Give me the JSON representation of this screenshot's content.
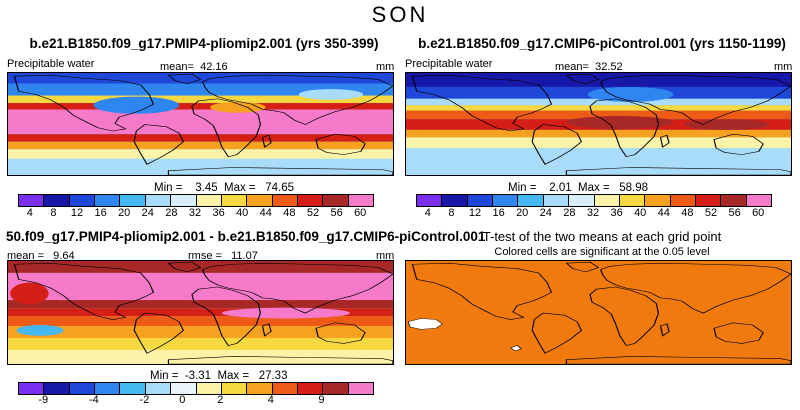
{
  "season": "SON",
  "panels": {
    "top_left": {
      "title": "b.e21.B1850.f09_g17.PMIP4-pliomip2.001 (yrs 350-399)",
      "variable": "Precipitable water",
      "mean_label": "mean=",
      "mean_value": "42.16",
      "units": "mm",
      "min_label": "Min =",
      "min_value": "3.45",
      "max_label": "Max =",
      "max_value": "74.65"
    },
    "top_right": {
      "title": "b.e21.B1850.f09_g17.CMIP6-piControl.001 (yrs 1150-1199)",
      "variable": "Precipitable water",
      "mean_label": "mean=",
      "mean_value": "32.52",
      "units": "mm",
      "min_label": "Min =",
      "min_value": "2.01",
      "max_label": "Max =",
      "max_value": "58.98"
    },
    "bottom_left": {
      "title": "50.f09_g17.PMIP4-pliomip2.001 - b.e21.B1850.f09_g17.CMIP6-piControl.001",
      "mean_label": "mean =",
      "mean_value": "9.64",
      "rmse_label": "rmse =",
      "rmse_value": "11.07",
      "units": "mm",
      "min_label": "Min =",
      "min_value": "-3.31",
      "max_label": "Max =",
      "max_value": "27.33"
    },
    "bottom_right": {
      "title": "T-test of the two means at each grid point",
      "subtitle": "Colored cells are significant at the 0.05 level"
    }
  },
  "colorbars": {
    "absolute": {
      "colors": [
        "#7b2ff0",
        "#1818a8",
        "#1f48d8",
        "#2f86f0",
        "#45b8f2",
        "#a9dcf8",
        "#d9eefb",
        "#fbf3a8",
        "#f6d840",
        "#f6a11f",
        "#ee5b16",
        "#d51f16",
        "#a82828",
        "#f57ac9"
      ],
      "ticks": [
        "4",
        "8",
        "12",
        "16",
        "20",
        "24",
        "28",
        "32",
        "36",
        "40",
        "44",
        "48",
        "52",
        "56",
        "60"
      ]
    },
    "difference": {
      "colors": [
        "#7b2ff0",
        "#1818a8",
        "#1f48d8",
        "#2f86f0",
        "#45b8f2",
        "#a9dcf8",
        "#eaf5fb",
        "#fbf3a8",
        "#f6d840",
        "#f6a11f",
        "#ee5b16",
        "#d51f16",
        "#a82828",
        "#f57ac9"
      ],
      "ticks": [
        "-9",
        "-4",
        "-2",
        "0",
        "2",
        "4",
        "9"
      ]
    }
  }
}
